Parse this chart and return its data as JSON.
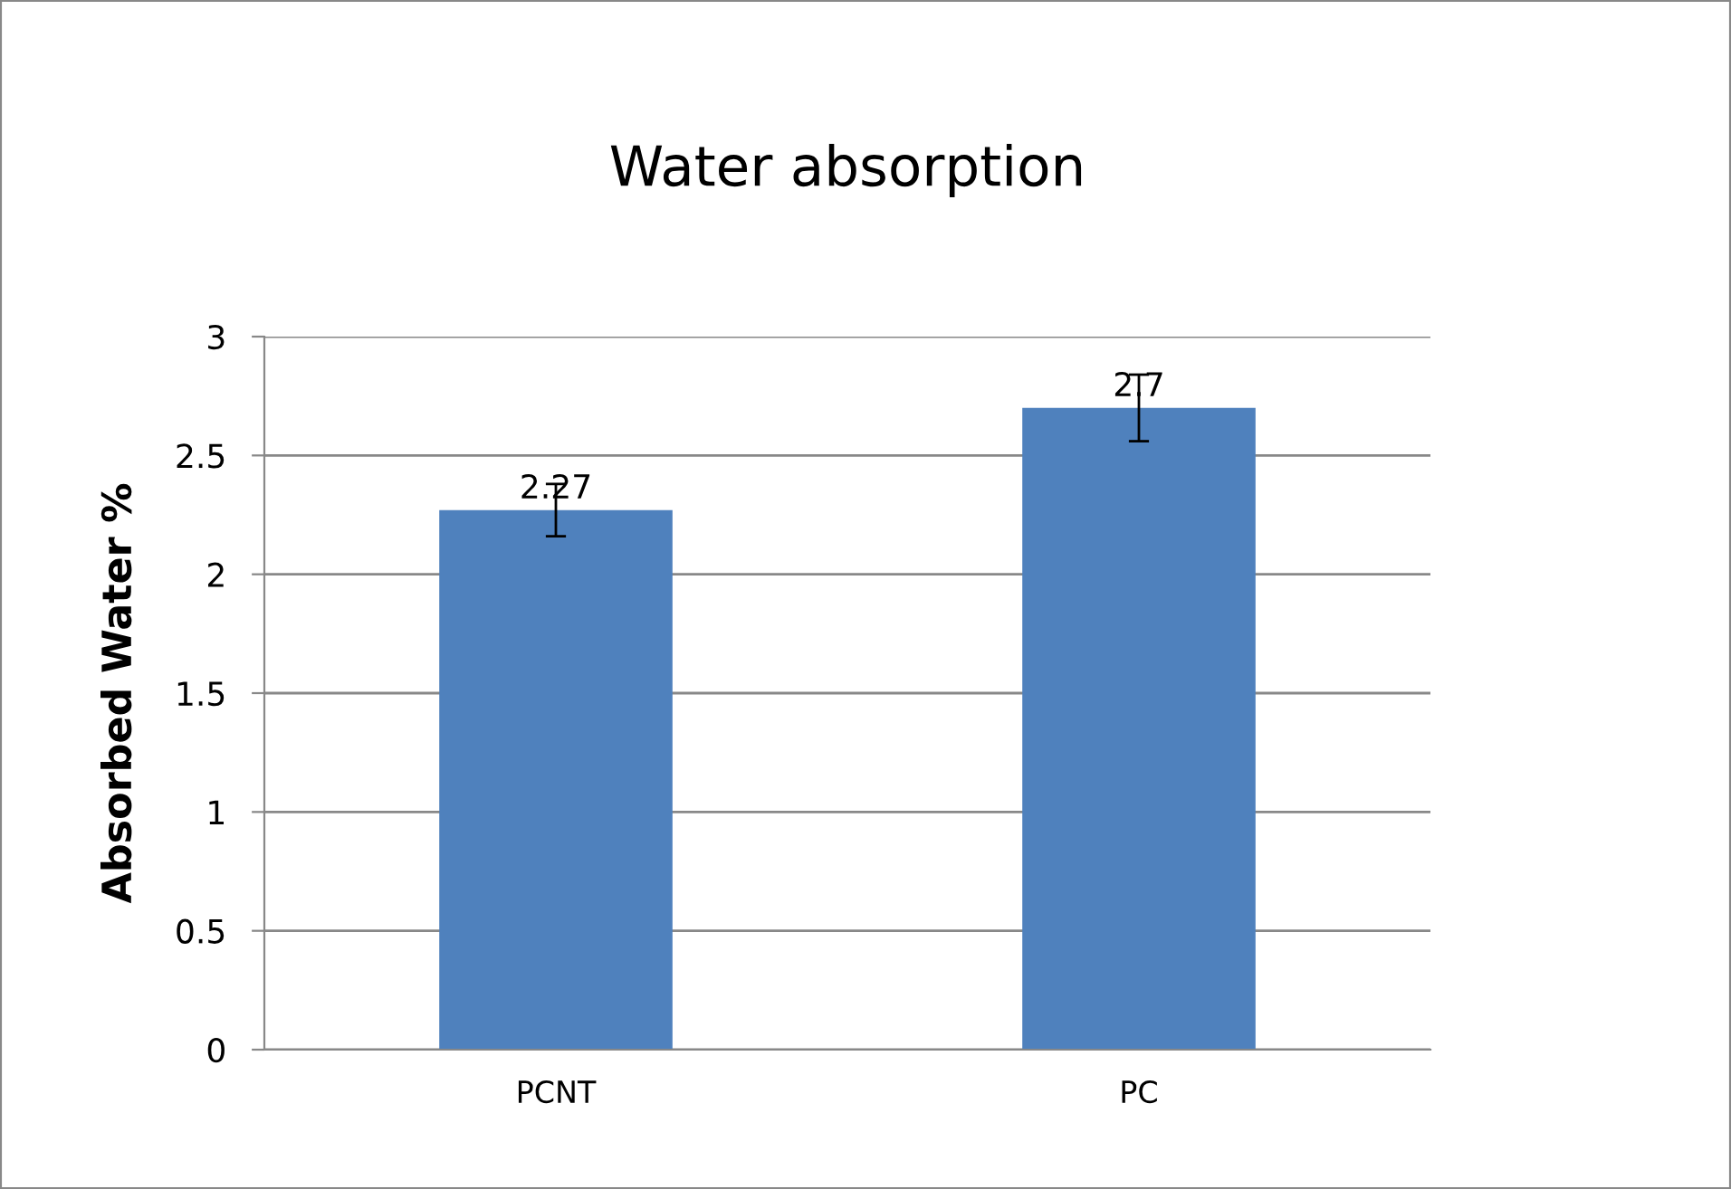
{
  "chart_data": {
    "type": "bar",
    "title": "Water absorption",
    "ylabel": "Absorbed Water %",
    "categories": [
      "PCNT",
      "PC"
    ],
    "series": [
      {
        "color": "#4f81bd",
        "values": [
          2.27,
          2.7
        ],
        "errors": [
          0.11,
          0.14
        ]
      }
    ],
    "ylim": [
      0,
      3
    ],
    "yticks": [
      0,
      0.5,
      1,
      1.5,
      2,
      2.5,
      3
    ],
    "grid": "y",
    "data_labels": true,
    "legend": false
  }
}
